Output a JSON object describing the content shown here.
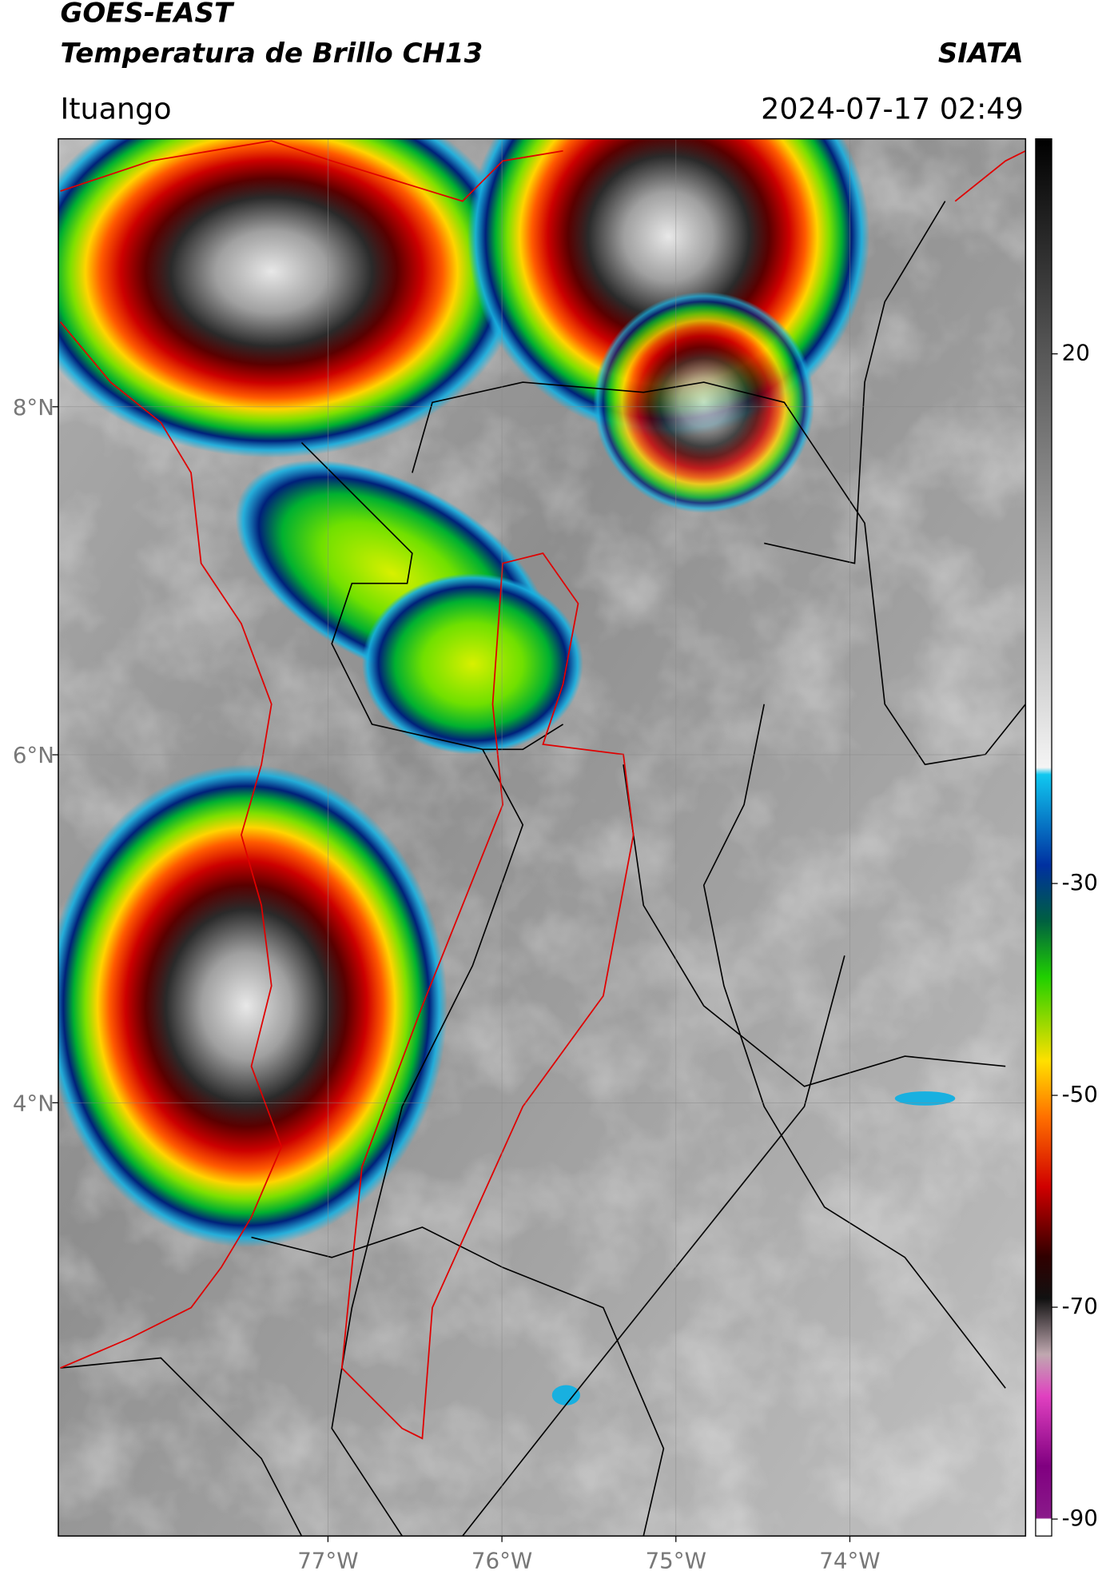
{
  "chart_data": {
    "type": "map",
    "title": "GOES-EAST",
    "subtitle": "Temperatura de Brillo CH13",
    "source": "SIATA",
    "location": "Ituango",
    "datetime": "2024-07-17 02:49",
    "xlim": [
      -78.55,
      -72.99
    ],
    "ylim": [
      1.51,
      9.54
    ],
    "xticks": [
      {
        "value": -77,
        "label": "77°W"
      },
      {
        "value": -76,
        "label": "76°W"
      },
      {
        "value": -75,
        "label": "75°W"
      },
      {
        "value": -74,
        "label": "74°W"
      }
    ],
    "yticks": [
      {
        "value": 8,
        "label": "8°N"
      },
      {
        "value": 6,
        "label": "6°N"
      },
      {
        "value": 4,
        "label": "4°N"
      }
    ],
    "grid": true,
    "colorbar": {
      "clim": [
        -91.6,
        40.3
      ],
      "ticks": [
        20,
        -30,
        -50,
        -70,
        -90
      ]
    }
  }
}
